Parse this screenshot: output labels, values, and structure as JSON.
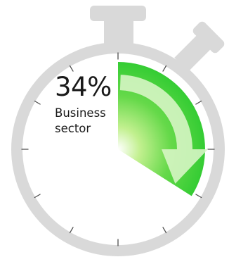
{
  "indicator": {
    "percent_label": "34%",
    "caption": "Business\nsector",
    "value_percent": 34
  },
  "colors": {
    "frame": "#d9d9d9",
    "face": "#ffffff",
    "tick": "#4d4d4d",
    "sector_light": "#b4ec6a",
    "sector_dark": "#33cc33",
    "arrow": "#d9f6c7",
    "text": "#1a1a1a"
  }
}
